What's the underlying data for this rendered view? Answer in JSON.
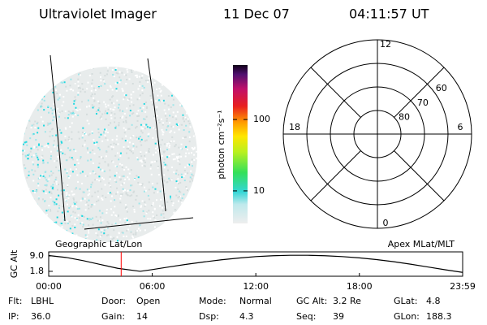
{
  "header": {
    "title": "Ultraviolet Imager",
    "date": "11 Dec 07",
    "time": "04:11:57 UT"
  },
  "image_panel": {
    "label": "Geographic Lat/Lon"
  },
  "colorbar": {
    "label": "photon cm⁻²s⁻¹",
    "scale": "log",
    "lim": [
      3.5,
      580
    ],
    "ticks": [
      10,
      100
    ]
  },
  "polar_panel": {
    "label": "Apex MLat/MLT",
    "rlim": [
      90,
      50
    ],
    "lat_rings": [
      80,
      70,
      60
    ],
    "hour_labels": [
      12,
      18,
      6,
      0
    ]
  },
  "altitude_plot": {
    "ylabel": "GC Alt",
    "ylim": [
      -0.5,
      10.9
    ],
    "yticks": [
      {
        "value": 9,
        "label": "9.0"
      },
      {
        "value": 1.8,
        "label": "1.8"
      }
    ],
    "xlim": [
      0,
      23.983
    ],
    "xticks": [
      {
        "value": 0,
        "label": "00:00"
      },
      {
        "value": 6,
        "label": "06:00"
      },
      {
        "value": 12,
        "label": "12:00"
      },
      {
        "value": 18,
        "label": "18:00"
      },
      {
        "value": 23.983,
        "label": "23:59"
      }
    ],
    "x": [
      0,
      1,
      2,
      3,
      4,
      5.3,
      6,
      7,
      8,
      9,
      10,
      11,
      12,
      13,
      14,
      15,
      16,
      17,
      18,
      19,
      20,
      21,
      22,
      23,
      23.983
    ],
    "values": [
      9.2,
      8.3,
      6.8,
      5.0,
      3.2,
      1.8,
      2.6,
      3.9,
      5.1,
      6.2,
      7.2,
      8.0,
      8.7,
      9.1,
      9.3,
      9.3,
      9.1,
      8.7,
      8.1,
      7.3,
      6.3,
      5.1,
      3.8,
      2.5,
      1.3
    ],
    "color": "#000000",
    "marker_color": "#ff0000"
  },
  "footer": {
    "rows": [
      [
        [
          "Flt:",
          "LBHL"
        ],
        [
          "Door:",
          "Open"
        ],
        [
          "Mode:",
          "Normal"
        ],
        [
          "GC Alt:",
          "3.2 Re"
        ],
        [
          "GLat:",
          "4.8"
        ]
      ],
      [
        [
          "IP:",
          "36.0"
        ],
        [
          "Gain:",
          "14"
        ],
        [
          "Dsp:",
          "4.3"
        ],
        [
          "Seq:",
          "39"
        ],
        [
          "GLon:",
          "188.3"
        ]
      ]
    ]
  }
}
